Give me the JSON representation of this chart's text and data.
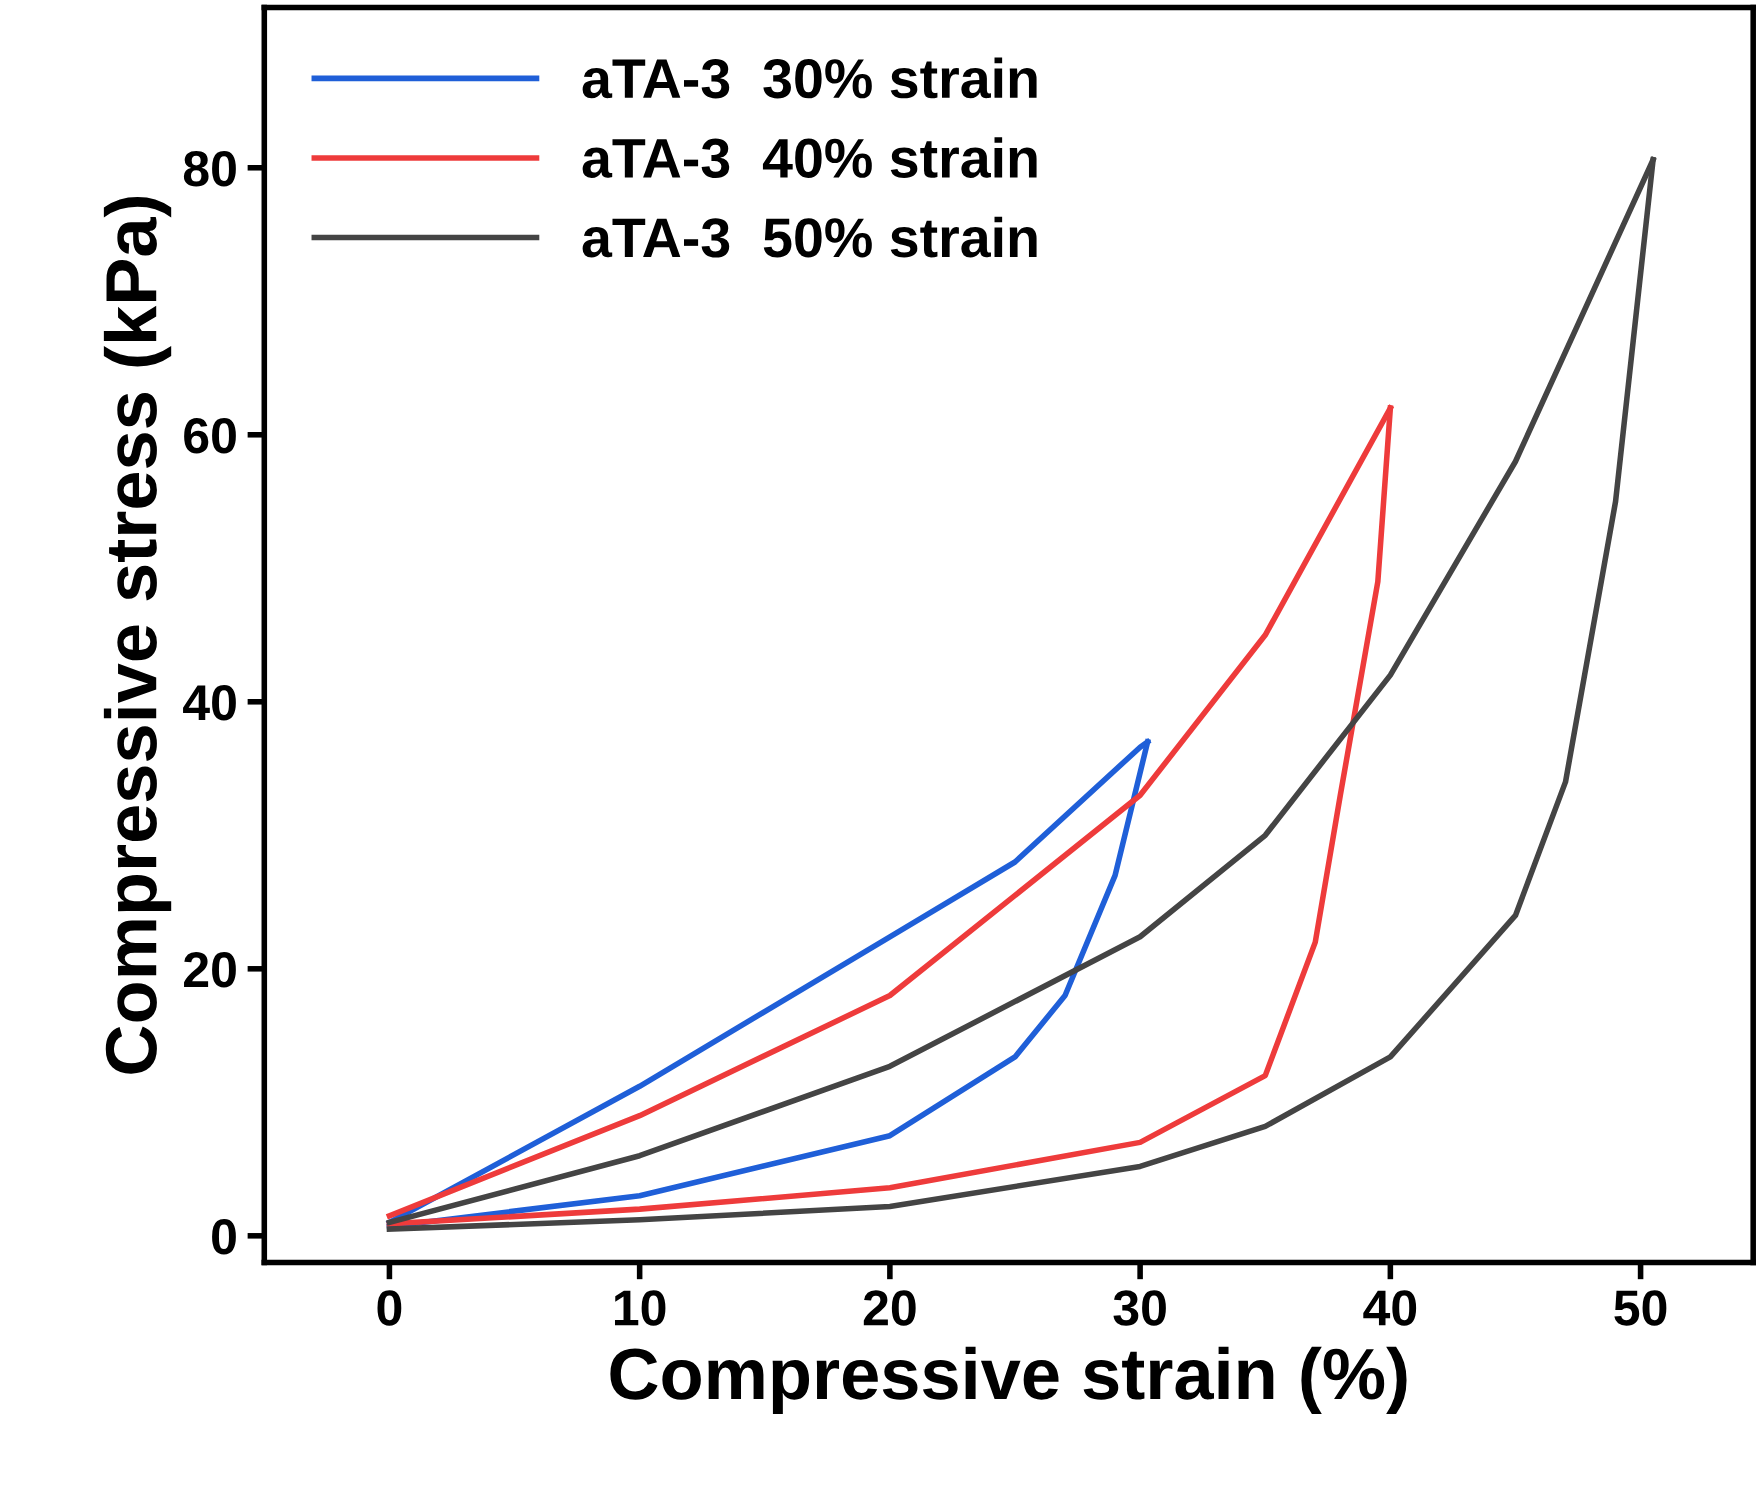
{
  "chart_data": {
    "type": "line",
    "xlabel": "Compressive strain (%)",
    "ylabel": "Compressive stress (kPa)",
    "xlim": [
      -5,
      54.5
    ],
    "ylim": [
      -2,
      92
    ],
    "xticks": [
      0,
      10,
      20,
      30,
      40,
      50
    ],
    "yticks": [
      0,
      20,
      40,
      60,
      80
    ],
    "grid": false,
    "legend": "top left",
    "marker": "none",
    "line_style": "solid",
    "series": [
      {
        "name": "aTA-3  30% strain",
        "color": "#1f5fd8",
        "x": [
          0,
          10,
          20,
          25,
          30,
          30.3
        ],
        "values": [
          1,
          11.2,
          22.4,
          28,
          36.6,
          37
        ]
      },
      {
        "color": "#1f5fd8",
        "x": [
          0,
          10,
          20,
          25,
          27,
          29,
          30.3
        ],
        "values": [
          0.7,
          3,
          7.5,
          13.4,
          18,
          27,
          37
        ]
      },
      {
        "name": "aTA-3  40% strain",
        "color": "#ee3b3b",
        "x": [
          0,
          10,
          20,
          30,
          35,
          40
        ],
        "values": [
          1.5,
          9,
          18,
          33,
          45,
          62
        ]
      },
      {
        "color": "#ee3b3b",
        "x": [
          0,
          10,
          20,
          30,
          35,
          37,
          38,
          39.5,
          40
        ],
        "values": [
          0.9,
          2,
          3.6,
          7,
          12,
          22,
          33,
          49,
          62
        ]
      },
      {
        "name": "aTA-3  50% strain",
        "color": "#444444",
        "x": [
          0,
          10,
          20,
          30,
          35,
          40,
          45,
          50.5
        ],
        "values": [
          1,
          6,
          12.7,
          22.4,
          30,
          42,
          58,
          80.6
        ]
      },
      {
        "color": "#444444",
        "x": [
          0,
          10,
          20,
          30,
          35,
          40,
          45,
          47,
          49,
          50.5
        ],
        "values": [
          0.5,
          1.2,
          2.2,
          5.2,
          8.2,
          13.4,
          24,
          34,
          55,
          80.6
        ]
      }
    ]
  }
}
